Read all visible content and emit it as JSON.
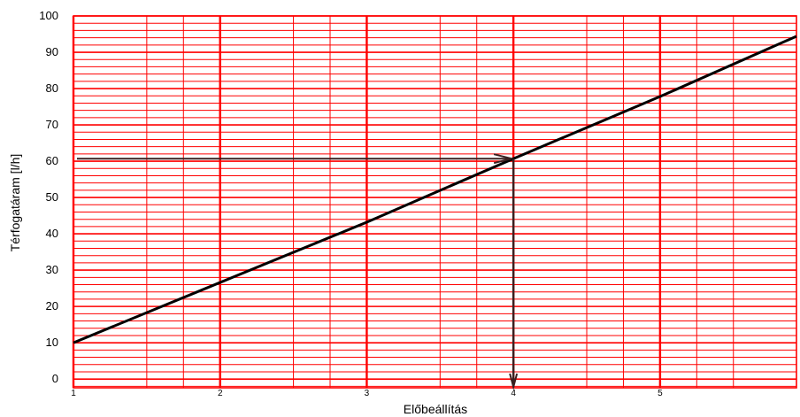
{
  "chart_data": {
    "type": "line",
    "xlabel": "Előbeállítás",
    "ylabel": "Térfogatáram [l/h]",
    "xlim": [
      1,
      5.93
    ],
    "ylim": [
      -2.4,
      100
    ],
    "x_ticks": [
      {
        "value": 1,
        "label": "1"
      },
      {
        "value": 2,
        "label": "2"
      },
      {
        "value": 3,
        "label": "3"
      },
      {
        "value": 4,
        "label": "4"
      },
      {
        "value": 5,
        "label": "5"
      }
    ],
    "y_ticks": [
      {
        "value": 0,
        "label": "0"
      },
      {
        "value": 10,
        "label": "10"
      },
      {
        "value": 20,
        "label": "20"
      },
      {
        "value": 30,
        "label": "30"
      },
      {
        "value": 40,
        "label": "40"
      },
      {
        "value": 50,
        "label": "50"
      },
      {
        "value": 60,
        "label": "60"
      },
      {
        "value": 70,
        "label": "70"
      },
      {
        "value": 80,
        "label": "80"
      },
      {
        "value": 90,
        "label": "90"
      },
      {
        "value": 100,
        "label": "100"
      }
    ],
    "x_minor_grid": [
      1.5,
      1.75,
      2.5,
      2.75,
      3.5,
      3.75,
      4.5,
      4.75,
      5.25,
      5.5
    ],
    "y_minor_grid_step": 2,
    "grid": true,
    "series": [
      {
        "x": [
          1,
          2,
          3,
          4,
          5,
          5.93
        ],
        "y": [
          10,
          26.6,
          43.2,
          60.7,
          77.8,
          94.4
        ]
      }
    ],
    "annotation": {
      "x": 4,
      "y": 60.7
    },
    "colors": {
      "grid": "#ff0000",
      "line": "#000000",
      "annotation": "#3a2020"
    }
  }
}
